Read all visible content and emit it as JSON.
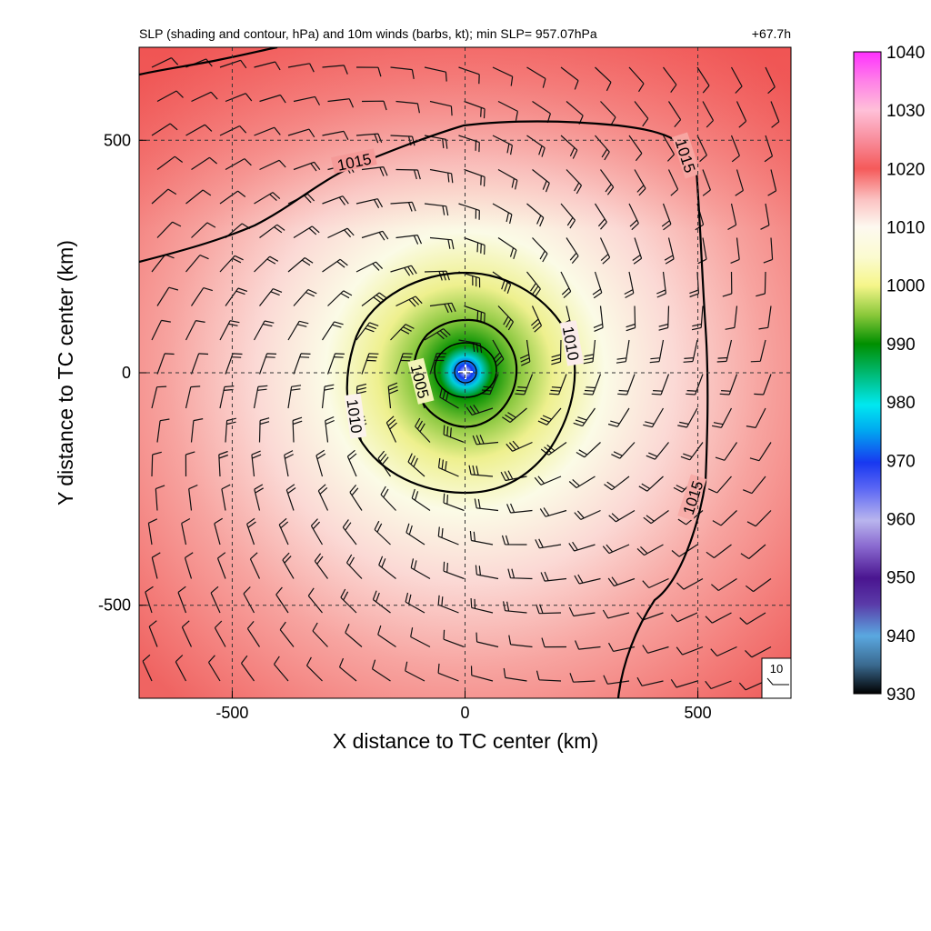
{
  "chart_data": {
    "type": "heatmap",
    "title": "SLP (shading and contour, hPa) and 10m winds (barbs, kt); min SLP= 957.07hPa",
    "forecast_time": "+67.7h",
    "xlabel": "X distance to TC center (km)",
    "ylabel": "Y distance to TC center (km)",
    "xlim": [
      -700,
      700
    ],
    "ylim": [
      -700,
      700
    ],
    "x_ticks": [
      -500,
      0,
      500
    ],
    "y_ticks": [
      -500,
      0,
      500
    ],
    "x_tick_labels": [
      "-500",
      "0",
      "500"
    ],
    "y_tick_labels": [
      "-500",
      "0",
      "500"
    ],
    "grid": true,
    "grid_style": "dashed",
    "field": {
      "name": "SLP",
      "units": "hPa",
      "center": [
        0,
        0
      ],
      "min_value": 957.07,
      "environment_value": 1020
    },
    "contours": [
      {
        "level": 1005,
        "label": "1005"
      },
      {
        "level": 1010,
        "label": "1010"
      },
      {
        "level": 1015,
        "label": "1015"
      }
    ],
    "colorbar": {
      "placement": "right",
      "min": 930,
      "max": 1040,
      "ticks": [
        930,
        940,
        950,
        960,
        970,
        980,
        990,
        1000,
        1010,
        1020,
        1030,
        1040
      ],
      "tick_labels": [
        "930",
        "940",
        "950",
        "960",
        "970",
        "980",
        "990",
        "1000",
        "1010",
        "1020",
        "1030",
        "1040"
      ],
      "colors": [
        {
          "value": 930,
          "color": "#000000"
        },
        {
          "value": 940,
          "color": "#5aa8e0"
        },
        {
          "value": 950,
          "color": "#4a1590"
        },
        {
          "value": 960,
          "color": "#b9b5ee"
        },
        {
          "value": 970,
          "color": "#1838f0"
        },
        {
          "value": 980,
          "color": "#00e8f0"
        },
        {
          "value": 990,
          "color": "#008f00"
        },
        {
          "value": 1000,
          "color": "#f6f68a"
        },
        {
          "value": 1010,
          "color": "#fdf9f0"
        },
        {
          "value": 1020,
          "color": "#f55a5a"
        },
        {
          "value": 1030,
          "color": "#ffc0d8"
        },
        {
          "value": 1040,
          "color": "#ff30ff"
        }
      ]
    },
    "wind_barbs": {
      "units": "kt",
      "reference_label": "10",
      "circulation": "cyclonic"
    }
  }
}
